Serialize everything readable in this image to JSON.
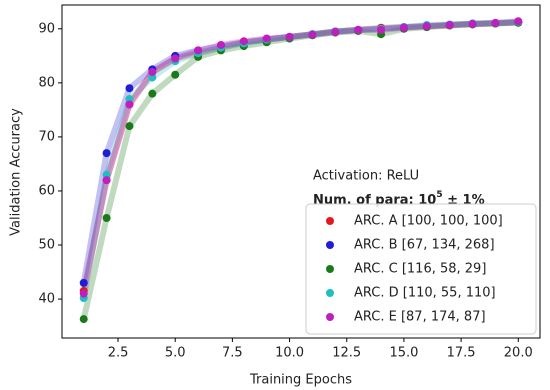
{
  "chart_data": {
    "type": "line",
    "x_label": "Training Epochs",
    "y_label": "Validation Accuracy",
    "annotation": "Activation: ReLU",
    "note": {
      "prefix": "Num. of para: 10",
      "superscript": "5",
      "suffix": " ± 1%"
    },
    "x": [
      1,
      2,
      3,
      4,
      5,
      6,
      7,
      8,
      9,
      10,
      11,
      12,
      13,
      14,
      15,
      16,
      17,
      18,
      19,
      20
    ],
    "series": [
      {
        "name": "ARC. A [100, 100, 100]",
        "color": "#e31a1c",
        "values": [
          41.5,
          62,
          76,
          82,
          84.5,
          85.5,
          86.5,
          87.5,
          88,
          88.5,
          89,
          89.5,
          89.8,
          90.2,
          90.3,
          90.5,
          90.7,
          90.9,
          91,
          91.2
        ]
      },
      {
        "name": "ARC. B [67, 134, 268]",
        "color": "#1f1fd6",
        "values": [
          43,
          67,
          79,
          82.5,
          85,
          86,
          86.8,
          87.5,
          88,
          88.5,
          89,
          89.5,
          89.8,
          90,
          90.3,
          90.5,
          90.7,
          90.9,
          91,
          91.2
        ]
      },
      {
        "name": "ARC. C [116, 58, 29]",
        "color": "#1a7a1a",
        "values": [
          36.3,
          55,
          72,
          78,
          81.5,
          84.8,
          86,
          86.8,
          87.5,
          88.2,
          88.8,
          89.3,
          89.6,
          89,
          90,
          90.3,
          90.6,
          90.8,
          91,
          91.1
        ]
      },
      {
        "name": "ARC. D [110, 55, 110]",
        "color": "#1fbfbf",
        "values": [
          40.2,
          63,
          77,
          81,
          84,
          85.5,
          86.5,
          87.3,
          88,
          88.5,
          89,
          89.5,
          89.8,
          90,
          90.3,
          90.7,
          90.8,
          91,
          91.1,
          91.3
        ]
      },
      {
        "name": "ARC. E [87, 174, 87]",
        "color": "#c01fc0",
        "values": [
          41,
          62,
          76,
          82,
          84.5,
          86,
          87,
          87.7,
          88.2,
          88.5,
          88.9,
          89.4,
          89.8,
          89.8,
          90.2,
          90.5,
          90.7,
          90.9,
          91.1,
          91.4
        ]
      }
    ],
    "xlim": [
      0.05,
      20.95
    ],
    "xticks": [
      2.5,
      {
        "value": 5,
        "label": "5.0"
      },
      7.5,
      {
        "value": 10,
        "label": "10.0"
      },
      12.5,
      {
        "value": 15,
        "label": "15.0"
      },
      17.5,
      {
        "value": 20,
        "label": "20.0"
      }
    ],
    "ylim": [
      32.8,
      94.4
    ],
    "yticks": [
      40,
      50,
      60,
      70,
      80,
      90
    ],
    "legend": "lower right"
  }
}
